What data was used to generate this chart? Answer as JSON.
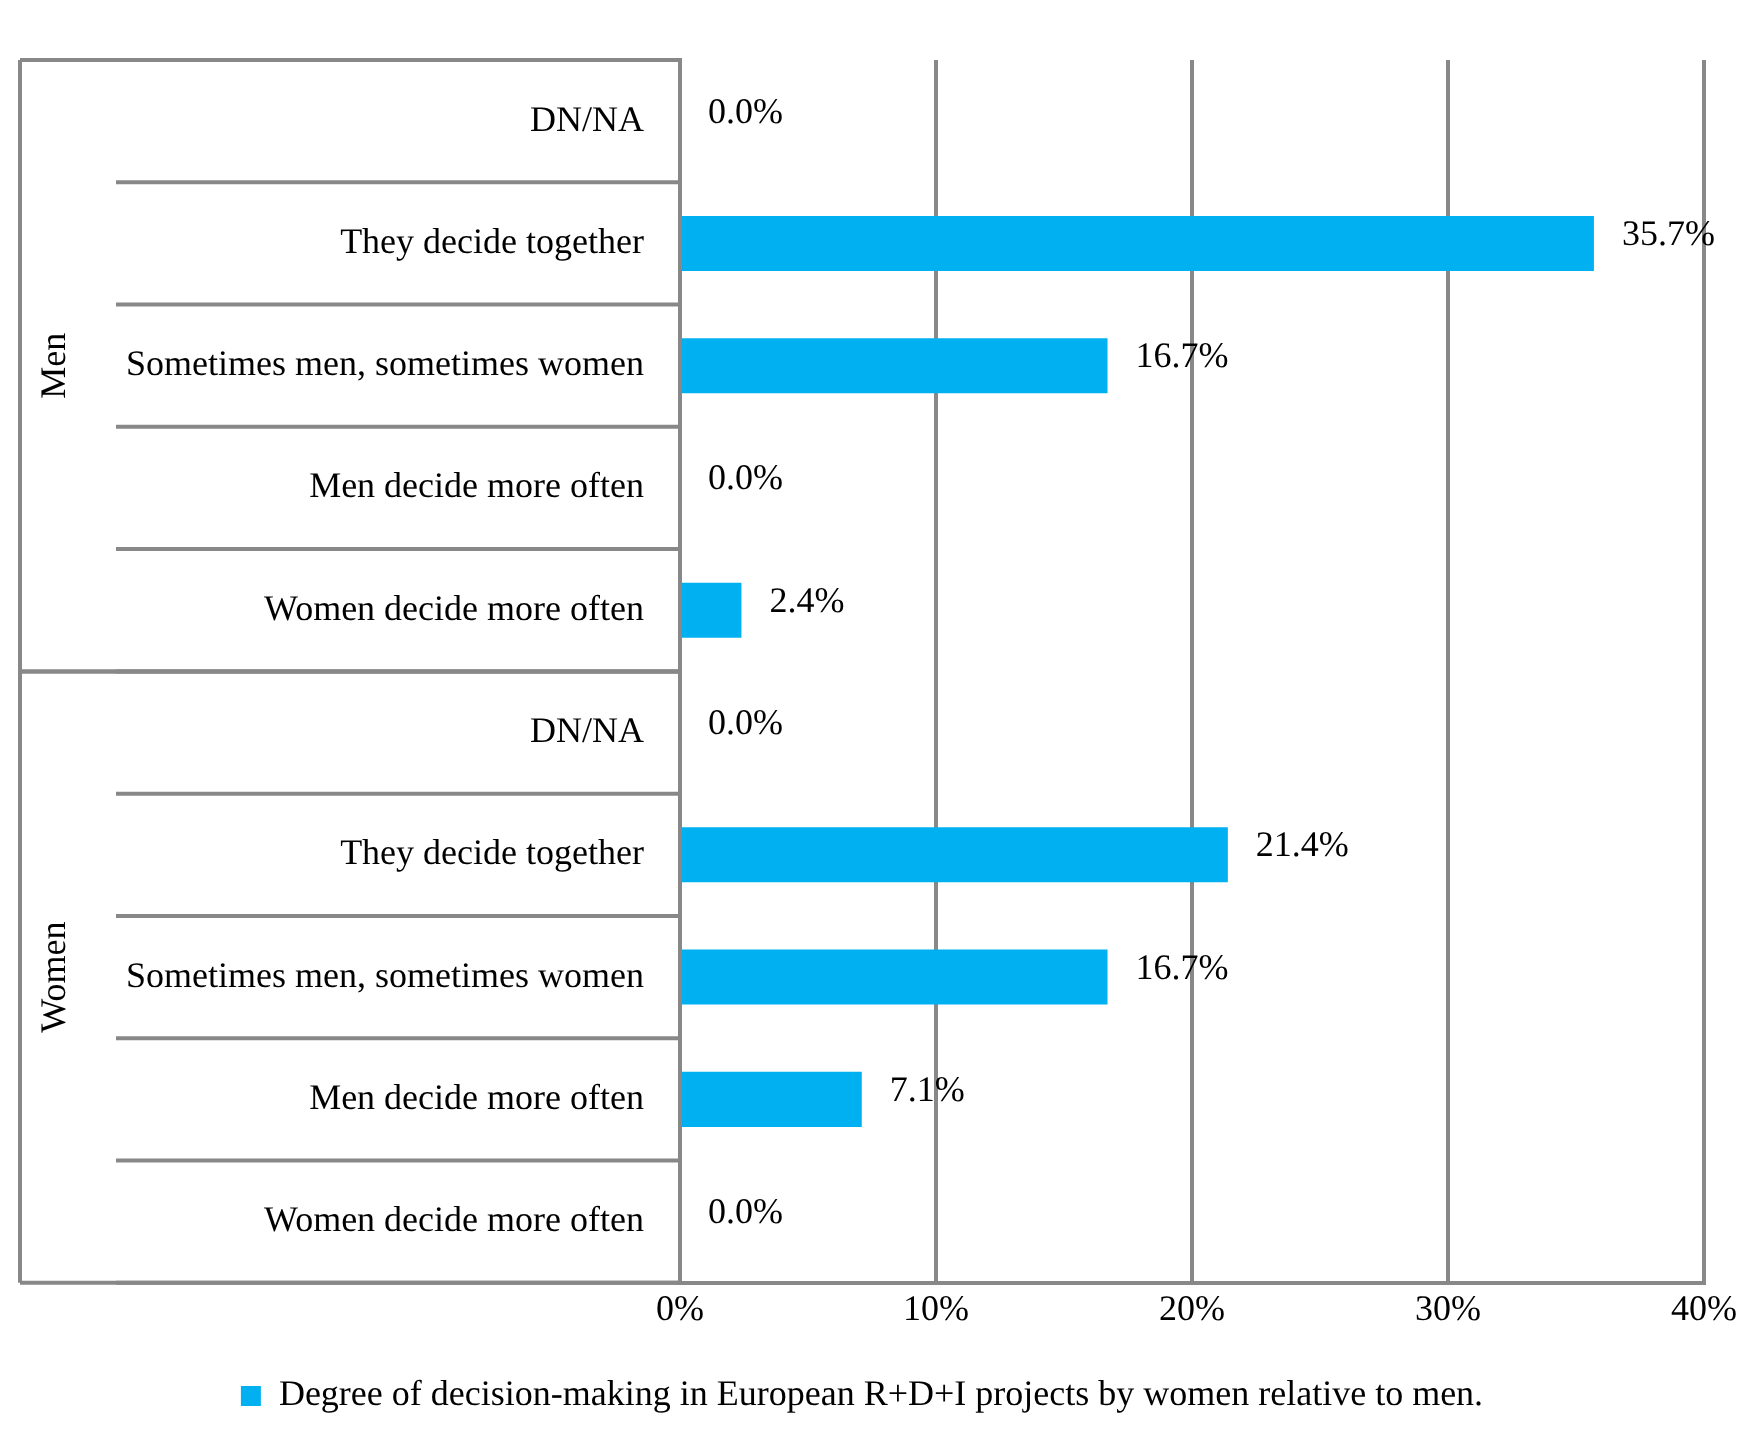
{
  "chart_data": {
    "type": "bar",
    "orientation": "horizontal",
    "categories": [
      "DN/NA",
      "They decide together",
      "Sometimes men, sometimes women",
      "Men decide more often",
      "Women decide more often",
      "DN/NA",
      "They decide together",
      "Sometimes men, sometimes women",
      "Men decide more often",
      "Women decide more often"
    ],
    "series": [
      {
        "name": "Degree of decision-making in European R+D+I projects by women relative to men.",
        "color": "#00b0f0",
        "values": [
          0,
          35.7,
          16.7,
          0,
          2.4,
          0,
          21.4,
          16.7,
          7.1,
          0
        ],
        "value_labels": [
          "0.0%",
          "35.7%",
          "16.7%",
          "0.0%",
          "2.4%",
          "0.0%",
          "21.4%",
          "16.7%",
          "7.1%",
          "0.0%"
        ]
      }
    ],
    "xlim": [
      0,
      40
    ],
    "xticks": [
      {
        "value": 0,
        "label": "0%"
      },
      {
        "value": 10,
        "label": "10%"
      },
      {
        "value": 20,
        "label": "20%"
      },
      {
        "value": 30,
        "label": "30%"
      },
      {
        "value": 40,
        "label": "40%"
      }
    ],
    "annotations": [
      "Men",
      "Women"
    ],
    "grid": "x",
    "legend": "bottom"
  }
}
